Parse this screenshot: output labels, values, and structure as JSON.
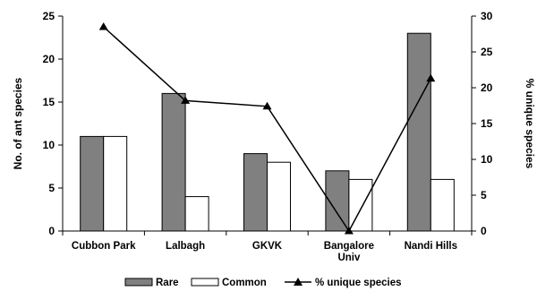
{
  "chart_data": {
    "type": "bar",
    "categories": [
      [
        "Cubbon Park"
      ],
      [
        "Lalbagh"
      ],
      [
        "GKVK"
      ],
      [
        "Bangalore",
        "Univ"
      ],
      [
        "Nandi Hills"
      ]
    ],
    "series": [
      {
        "name": "Rare",
        "kind": "bar",
        "axis": "left",
        "color": "#808080",
        "values": [
          11,
          16,
          9,
          7,
          23
        ]
      },
      {
        "name": "Common",
        "kind": "bar",
        "axis": "left",
        "color": "#ffffff",
        "values": [
          11,
          4,
          8,
          6,
          6
        ]
      },
      {
        "name": "% unique species",
        "kind": "line",
        "axis": "right",
        "color": "#000000",
        "marker": "triangle",
        "values": [
          28.5,
          18.2,
          17.4,
          0,
          21.3
        ]
      }
    ],
    "ylabel_left": "No. of ant species",
    "ylabel_right": "% unique species",
    "ylim_left": [
      0,
      25
    ],
    "yticks_left": [
      0,
      5,
      10,
      15,
      20,
      25
    ],
    "ylim_right": [
      0,
      30
    ],
    "yticks_right": [
      0,
      5,
      10,
      15,
      20,
      25,
      30
    ],
    "grid": false,
    "legend": "bottom"
  }
}
